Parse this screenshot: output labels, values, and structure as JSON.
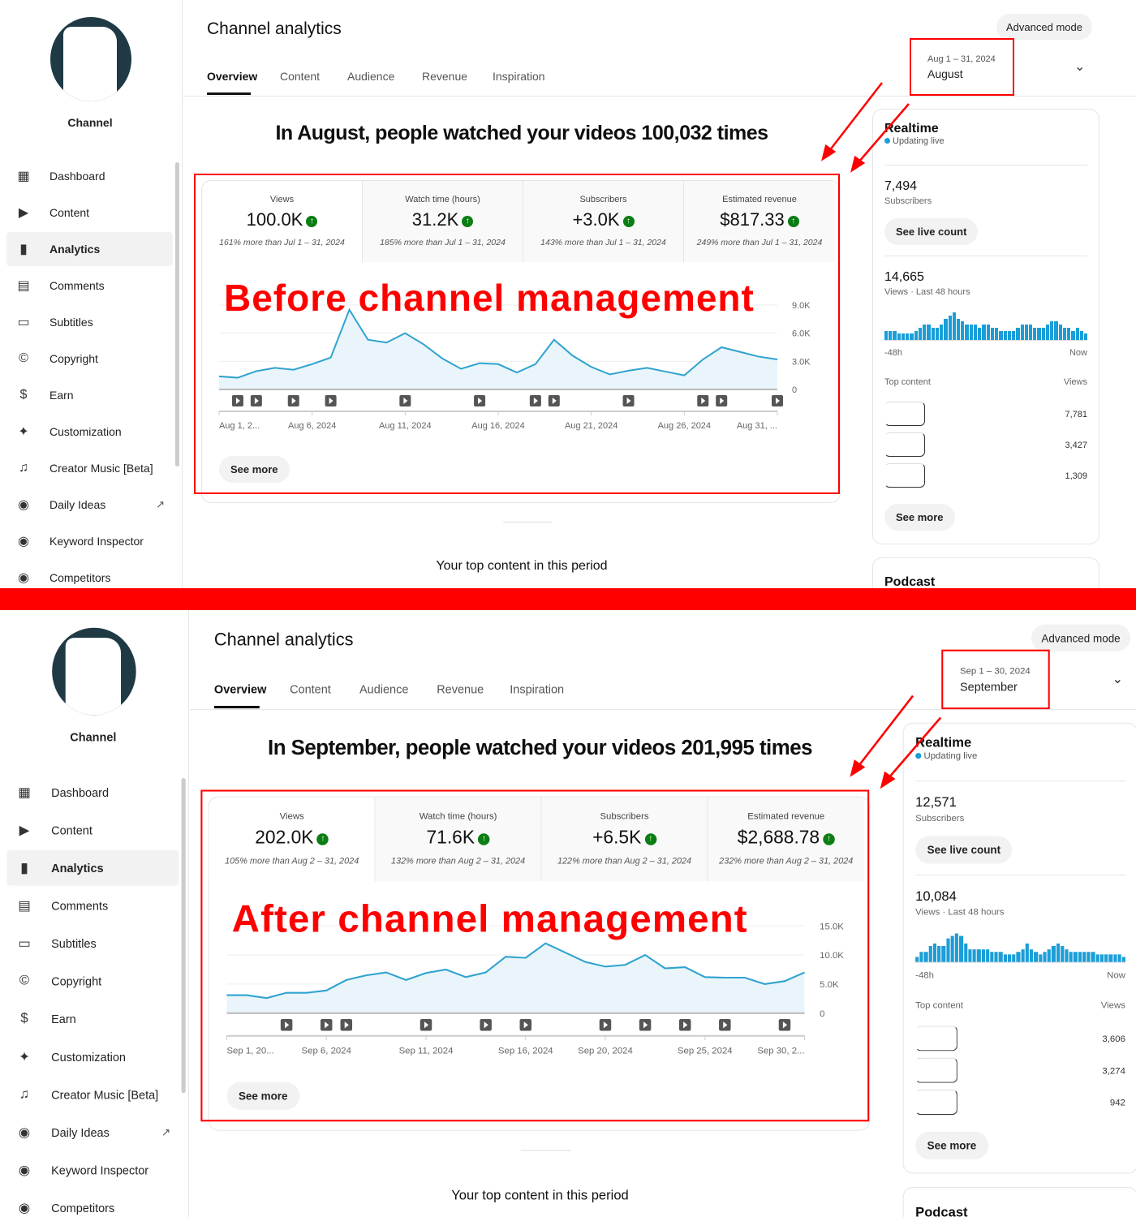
{
  "before": {
    "channel_name": "Channel",
    "title": "Channel analytics",
    "tabs": [
      "Overview",
      "Content",
      "Audience",
      "Revenue",
      "Inspiration"
    ],
    "advanced_mode": "Advanced mode",
    "date_range": "Aug 1 – 31, 2024",
    "date_label": "August",
    "headline": "In August, people watched your videos 100,032 times",
    "annotation": "Before channel management",
    "metrics": [
      {
        "label": "Views",
        "value": "100.0K",
        "compare": "161% more than Jul 1 – 31, 2024"
      },
      {
        "label": "Watch time (hours)",
        "value": "31.2K",
        "compare": "185% more than Jul 1 – 31, 2024"
      },
      {
        "label": "Subscribers",
        "value": "+3.0K",
        "compare": "143% more than Jul 1 – 31, 2024"
      },
      {
        "label": "Estimated revenue",
        "value": "$817.33",
        "compare": "249% more than Jul 1 – 31, 2024"
      }
    ],
    "see_more": "See more",
    "top_content_heading": "Your top content in this period",
    "sidebar": {
      "items": [
        {
          "label": "Dashboard",
          "icon": "dashboard-icon"
        },
        {
          "label": "Content",
          "icon": "content-icon"
        },
        {
          "label": "Analytics",
          "icon": "analytics-icon",
          "active": true
        },
        {
          "label": "Comments",
          "icon": "comments-icon"
        },
        {
          "label": "Subtitles",
          "icon": "subtitles-icon"
        },
        {
          "label": "Copyright",
          "icon": "copyright-icon"
        },
        {
          "label": "Earn",
          "icon": "dollar-icon"
        },
        {
          "label": "Customization",
          "icon": "magic-wand-icon"
        },
        {
          "label": "Creator Music [Beta]",
          "icon": "music-icon"
        },
        {
          "label": "Daily Ideas",
          "icon": "daily-ideas-icon",
          "external": true
        },
        {
          "label": "Keyword Inspector",
          "icon": "keyword-inspector-icon"
        },
        {
          "label": "Competitors",
          "icon": "competitors-icon"
        }
      ]
    },
    "realtime": {
      "title": "Realtime",
      "status": "Updating live",
      "subscribers": "7,494",
      "subscribers_label": "Subscribers",
      "live_count_button": "See live count",
      "views": "14,665",
      "views_label": "Views · Last 48 hours",
      "bars": [
        3,
        3,
        3,
        2,
        2,
        2,
        2,
        3,
        4,
        5,
        5,
        4,
        4,
        5,
        7,
        8,
        9,
        7,
        6,
        5,
        5,
        5,
        4,
        5,
        5,
        4,
        4,
        3,
        3,
        3,
        3,
        4,
        5,
        5,
        5,
        4,
        4,
        4,
        5,
        6,
        6,
        5,
        4,
        4,
        3,
        4,
        3,
        2
      ],
      "start_label": "-48h",
      "end_label": "Now",
      "top_content_label": "Top content",
      "views_col": "Views",
      "top_content": [
        "7,781",
        "3,427",
        "1,309"
      ],
      "see_more": "See more",
      "podcast": "Podcast"
    },
    "chart_data": {
      "type": "area",
      "x": [
        "Aug 1",
        "Aug 2",
        "Aug 3",
        "Aug 4",
        "Aug 5",
        "Aug 6",
        "Aug 7",
        "Aug 8",
        "Aug 9",
        "Aug 10",
        "Aug 11",
        "Aug 12",
        "Aug 13",
        "Aug 14",
        "Aug 15",
        "Aug 16",
        "Aug 17",
        "Aug 18",
        "Aug 19",
        "Aug 20",
        "Aug 21",
        "Aug 22",
        "Aug 23",
        "Aug 24",
        "Aug 25",
        "Aug 26",
        "Aug 27",
        "Aug 28",
        "Aug 29",
        "Aug 30",
        "Aug 31"
      ],
      "values": [
        1400,
        1250,
        1950,
        2300,
        2100,
        2700,
        3400,
        8500,
        5300,
        5000,
        6000,
        4800,
        3300,
        2200,
        2800,
        2700,
        1800,
        2700,
        5300,
        3600,
        2400,
        1600,
        2000,
        2300,
        1900,
        1500,
        3200,
        4500,
        4000,
        3500,
        3200
      ],
      "ylim": [
        0,
        9000
      ],
      "yticks": [
        "0",
        "3.0K",
        "6.0K",
        "9.0K"
      ],
      "xtick_labels": [
        "Aug 1, 2...",
        "Aug 6, 2024",
        "Aug 11, 2024",
        "Aug 16, 2024",
        "Aug 21, 2024",
        "Aug 26, 2024",
        "Aug 31, ..."
      ],
      "xtick_index": [
        0,
        5,
        10,
        15,
        20,
        25,
        30
      ],
      "video_markers": [
        "Aug 2",
        "Aug 3",
        "Aug 5",
        "Aug 7",
        "Aug 11",
        "Aug 15",
        "Aug 18",
        "Aug 19",
        "Aug 23",
        "Aug 27",
        "Aug 28",
        "Aug 31"
      ],
      "grid": true,
      "line_color": "#2fa3cf",
      "fill_color": "#e9f5fb"
    }
  },
  "after": {
    "channel_name": "Channel",
    "title": "Channel analytics",
    "tabs": [
      "Overview",
      "Content",
      "Audience",
      "Revenue",
      "Inspiration"
    ],
    "advanced_mode": "Advanced mode",
    "date_range": "Sep 1 – 30, 2024",
    "date_label": "September",
    "headline": "In September, people watched your videos 201,995 times",
    "annotation": "After channel management",
    "metrics": [
      {
        "label": "Views",
        "value": "202.0K",
        "compare": "105% more than Aug 2 – 31, 2024"
      },
      {
        "label": "Watch time (hours)",
        "value": "71.6K",
        "compare": "132% more than Aug 2 – 31, 2024"
      },
      {
        "label": "Subscribers",
        "value": "+6.5K",
        "compare": "122% more than Aug 2 – 31, 2024"
      },
      {
        "label": "Estimated revenue",
        "value": "$2,688.78",
        "compare": "232% more than Aug 2 – 31, 2024"
      }
    ],
    "see_more": "See more",
    "top_content_heading": "Your top content in this period",
    "sidebar": {
      "items": [
        {
          "label": "Dashboard",
          "icon": "dashboard-icon"
        },
        {
          "label": "Content",
          "icon": "content-icon"
        },
        {
          "label": "Analytics",
          "icon": "analytics-icon",
          "active": true
        },
        {
          "label": "Comments",
          "icon": "comments-icon"
        },
        {
          "label": "Subtitles",
          "icon": "subtitles-icon"
        },
        {
          "label": "Copyright",
          "icon": "copyright-icon"
        },
        {
          "label": "Earn",
          "icon": "dollar-icon"
        },
        {
          "label": "Customization",
          "icon": "magic-wand-icon"
        },
        {
          "label": "Creator Music [Beta]",
          "icon": "music-icon"
        },
        {
          "label": "Daily Ideas",
          "icon": "daily-ideas-icon",
          "external": true
        },
        {
          "label": "Keyword Inspector",
          "icon": "keyword-inspector-icon"
        },
        {
          "label": "Competitors",
          "icon": "competitors-icon"
        }
      ]
    },
    "realtime": {
      "title": "Realtime",
      "status": "Updating live",
      "subscribers": "12,571",
      "subscribers_label": "Subscribers",
      "live_count_button": "See live count",
      "views": "10,084",
      "views_label": "Views · Last 48 hours",
      "bars": [
        2,
        4,
        4,
        6,
        7,
        6,
        6,
        9,
        10,
        11,
        10,
        7,
        5,
        5,
        5,
        5,
        5,
        4,
        4,
        4,
        3,
        3,
        3,
        4,
        5,
        7,
        5,
        4,
        3,
        4,
        5,
        6,
        7,
        6,
        5,
        4,
        4,
        4,
        4,
        4,
        4,
        3,
        3,
        3,
        3,
        3,
        3,
        2
      ],
      "start_label": "-48h",
      "end_label": "Now",
      "top_content_label": "Top content",
      "views_col": "Views",
      "top_content": [
        "3,606",
        "3,274",
        "942"
      ],
      "see_more": "See more",
      "podcast": "Podcast"
    },
    "chart_data": {
      "type": "area",
      "x": [
        "Sep 1",
        "Sep 2",
        "Sep 3",
        "Sep 4",
        "Sep 5",
        "Sep 6",
        "Sep 7",
        "Sep 8",
        "Sep 9",
        "Sep 10",
        "Sep 11",
        "Sep 12",
        "Sep 13",
        "Sep 14",
        "Sep 15",
        "Sep 16",
        "Sep 17",
        "Sep 18",
        "Sep 19",
        "Sep 20",
        "Sep 21",
        "Sep 22",
        "Sep 23",
        "Sep 24",
        "Sep 25",
        "Sep 26",
        "Sep 27",
        "Sep 28",
        "Sep 29",
        "Sep 30"
      ],
      "values": [
        3100,
        3100,
        2600,
        3500,
        3500,
        3900,
        5700,
        6500,
        7000,
        5700,
        6900,
        7500,
        6200,
        7000,
        9700,
        9500,
        12000,
        10400,
        8800,
        8000,
        8300,
        10000,
        7700,
        7900,
        6200,
        6100,
        6100,
        5000,
        5500,
        7000
      ],
      "ylim": [
        0,
        15000
      ],
      "yticks": [
        "0",
        "5.0K",
        "10.0K",
        "15.0K"
      ],
      "xtick_labels": [
        "Sep 1, 20...",
        "Sep 6, 2024",
        "Sep 11, 2024",
        "Sep 16, 2024",
        "Sep 20, 2024",
        "Sep 25, 2024",
        "Sep 30, 2..."
      ],
      "xtick_index": [
        0,
        5,
        10,
        15,
        19,
        24,
        29
      ],
      "video_markers": [
        "Sep 4",
        "Sep 6",
        "Sep 7",
        "Sep 11",
        "Sep 14",
        "Sep 16",
        "Sep 20",
        "Sep 22",
        "Sep 24",
        "Sep 26",
        "Sep 29"
      ],
      "grid": true,
      "line_color": "#2fa3cf",
      "fill_color": "#e9f5fb"
    }
  },
  "colors": {
    "annotation": "#ff0000",
    "accent_up": "#0a7e12",
    "line": "#2fa3cf",
    "live_dot": "#1b9ed8"
  }
}
